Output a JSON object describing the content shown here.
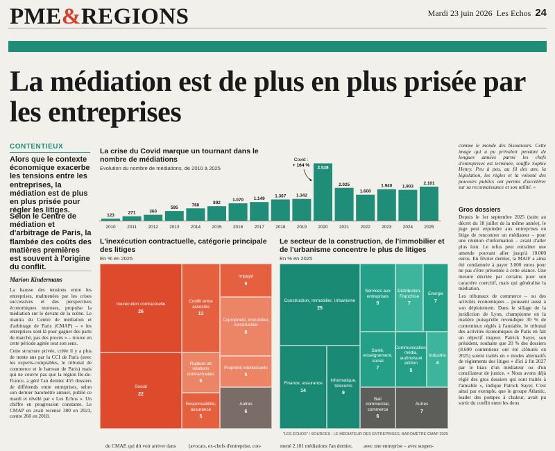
{
  "header": {
    "masthead_part1": "PME",
    "masthead_amp": "&",
    "masthead_part2": "REGIONS",
    "date": "Mardi 23 juin 2026",
    "paper": "Les Echos",
    "page": "24"
  },
  "headline": "La médiation est de plus en plus prisée par les entreprises",
  "kicker": "CONTENTIEUX",
  "chapo1": "Alors que le contexte économique exacerbe les tensions entre les entreprises, la médiation est de plus en plus prisée pour régler les litiges.",
  "chapo2": "Selon le Centre de médiation et d'arbitrage de Paris, la flambée des coûts des matières premières est souvent à l'origine du conflit.",
  "byline": "Marion Kindermans",
  "body_left": [
    "La hausse des tensions entre les entreprises, malmenées par les crises successives et des perspectives économiques moroses, propulse la médiation sur le devant de la scène. Le mantra du Centre de médiation et d'arbitrage de Paris (CMAP) – « les entreprises sont là pour gagner des parts de marché, pas des procès » – trouve en cette période agitée tout son sens.",
    "Cette structure privée, créée il y a plus de trente ans par la CCI de Paris (avec les experts-comptables, le tribunal de commerce et le barreau de Paris) mais qui ne couvre pas que la région Ile-de-France, a géré l'an dernier 455 dossiers de différends entre entreprises, selon son dernier baromètre annuel, publié ce mardi et révélé par « Les Echos ». Un chiffre en progression constante. Le CMAP en avait recensé 380 en 2023, contre 260 en 2018."
  ],
  "bar_chart_title": "La crise du Covid marque un tournant dans le nombre de médiations",
  "bar_chart_subtitle": "Evolution du nombre de médiations, de 2010 à 2025",
  "chart_data": [
    {
      "type": "bar",
      "title": "La crise du Covid marque un tournant dans le nombre de médiations",
      "subtitle": "Evolution du nombre de médiations, de 2010 à 2025",
      "categories": [
        "2010",
        "2011",
        "2012",
        "2013",
        "2014",
        "2015",
        "2016",
        "2017",
        "2018",
        "2019",
        "2020",
        "2021",
        "2022",
        "2023",
        "2024",
        "2025"
      ],
      "values": [
        123,
        271,
        360,
        595,
        760,
        892,
        1070,
        1149,
        1307,
        1342,
        3538,
        2025,
        1600,
        1940,
        1903,
        2101
      ],
      "value_labels": [
        "123",
        "271",
        "360",
        "595",
        "760",
        "892",
        "1.070",
        "1.149",
        "1.307",
        "1.342",
        "3.538",
        "2.025",
        "1.600",
        "1.940",
        "1.903",
        "2.101"
      ],
      "annotation": {
        "label1": "Covid :",
        "label2": "+ 164 %",
        "year": "2020"
      },
      "ylim": [
        0,
        3600
      ],
      "color": "#1f8d78",
      "grid": false
    },
    {
      "type": "treemap",
      "title": "L'inexécution contractuelle, catégorie principale des litiges",
      "subtitle": "En % en 2025",
      "cells": [
        {
          "label": "Inexécution contractuelle",
          "value": 26
        },
        {
          "label": "Social",
          "value": 22
        },
        {
          "label": "Conflit entre associés",
          "value": 13
        },
        {
          "label": "Rupture de relations contractuelles",
          "value": 6
        },
        {
          "label": "Responsabilité, assurance",
          "value": 5
        },
        {
          "label": "Impayé",
          "value": 9
        },
        {
          "label": "Copropriété, immobilier, construction",
          "value": 8
        },
        {
          "label": "Propriété intellectuelle",
          "value": 5
        },
        {
          "label": "Autres",
          "value": 6
        }
      ]
    },
    {
      "type": "treemap",
      "title": "Le secteur de la construction, de l'immobilier et de l'urbanisme concentre le plus de litiges",
      "subtitle": "En % en 2025",
      "cells": [
        {
          "label": "Construction, immobilier, Urbanisme",
          "value": 25
        },
        {
          "label": "Finance, assurance",
          "value": 14
        },
        {
          "label": "Informatique, télécoms",
          "value": 9
        },
        {
          "label": "Services aux entreprises",
          "value": 9
        },
        {
          "label": "Distribution, Franchise",
          "value": 7
        },
        {
          "label": "Energie",
          "value": 7
        },
        {
          "label": "Santé, enseignement, social",
          "value": 7
        },
        {
          "label": "Communication, média, audiovisuel édition",
          "value": 5
        },
        {
          "label": "Industrie",
          "value": 4
        },
        {
          "label": "Bail commercial, commerce",
          "value": 6
        },
        {
          "label": "Autres",
          "value": 7
        }
      ]
    }
  ],
  "tm1": {
    "title": "L'inexécution contractuelle, catégorie principale des litiges",
    "subtitle": "En % en 2025",
    "colors": {
      "dark": "#dd4a2c",
      "mid": "#e5603f",
      "light": "#ec8466",
      "gray": "#7a6c66"
    }
  },
  "tm2": {
    "title": "Le secteur de la construction, de l'immobilier et de l'urbanisme concentre le plus de litiges",
    "subtitle": "En % en 2025",
    "colors": {
      "dark": "#1a8a74",
      "mid": "#24a088",
      "light": "#3db49c",
      "gray": "#5d5d5a"
    }
  },
  "source": "\"LES ECHOS\" / SOURCES : LE MÉDIATEUR DES ENTREPRISES, BAROMÈTRE CMAP 2025",
  "bottom_texts": [
    "du CMAP, qui dit voir arriver dans",
    "(avocats, ex-chefs d'entreprise, con-",
    "mené 2.101 médiations l'an dernier,",
    "avec une entreprise – avec suspen-",
    "sion du délai de prescription – le"
  ],
  "right_italic": "comme le monde des bisounours. Cette image qui a pu prévaloir pendant de longues années parmi les chefs d'entreprises est terminée, souffle Sophie Henry. Peu à peu, au fil des ans, la législation, les règles et la volonté des pouvoirs publics ont permis d'accélérer sur sa reconnaissance et son utilité. »",
  "right_subhead": "Gros dossiers",
  "right_body": [
    "Depuis le 1er septembre 2025 (suite au décret du 18 juillet de la même année), le juge peut enjoindre aux entreprises en litige de rencontrer un médiateur – pour une réunion d'information – avant d'aller plus loin. Le refus peut entraîner une amende pouvant aller jusqu'à 10.000 euros. En février dernier, la MAIF a ainsi été condamnée à payer 3.000 euros pour ne pas s'être présentée à cette séance. Une mesure décriée par certains pour son caractère coercitif, mais qui généralise la médiation.",
    "Les tribunaux de commerce – ou des activités économiques – poussent aussi à son déploiement. Dans le sillage de la juridiction de Lyon, championne en la matière puisqu'elle revendique 30 % de contentieux réglés à l'amiable, le tribunal des activités économiques de Paris en fait un objectif majeur. Patrick Sayer, son président, souhaite que 20 % des dossiers (8.600 contentieux ont été clôturés en 2025) soient traités en « modes alternatifs de règlements des litiges » d'ici à fin 2027 par le biais d'un médiateur ou d'un conciliateur de justice. « Nous avons déjà réglé des gros dossiers qui sont traités à l'amiable », indique Patrick Sayer. C'est ainsi par exemple, que le groupe Atlantic, leader des pompes à chaleur, avait pu sortir du conflit entre les deux"
  ]
}
